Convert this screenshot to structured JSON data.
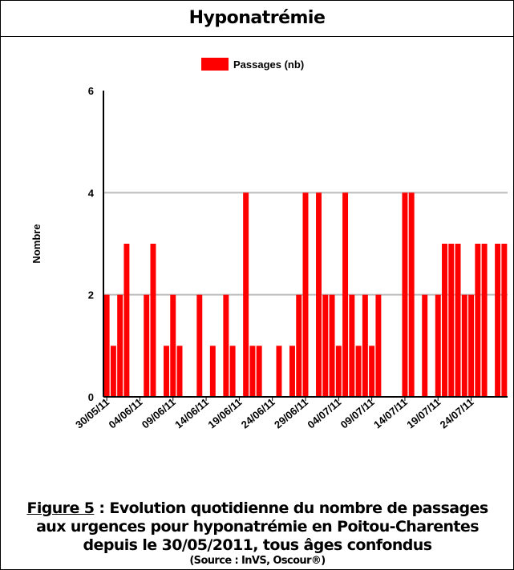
{
  "header": {
    "title": "Hyponatrémie"
  },
  "chart_data": {
    "type": "bar",
    "legend": "Passages (nb)",
    "color": "#ff0000",
    "y_label": "Nombre",
    "categories": [
      "30/05/11",
      null,
      null,
      null,
      null,
      "04/06/11",
      null,
      null,
      null,
      null,
      "09/06/11",
      null,
      null,
      null,
      null,
      "14/06/11",
      null,
      null,
      null,
      null,
      "19/06/11",
      null,
      null,
      null,
      null,
      "24/06/11",
      null,
      null,
      null,
      null,
      "29/06/11",
      null,
      null,
      null,
      null,
      "04/07/11",
      null,
      null,
      null,
      null,
      "09/07/11",
      null,
      null,
      null,
      null,
      "14/07/11",
      null,
      null,
      null,
      null,
      "19/07/11",
      null,
      null,
      null,
      null,
      "24/07/11",
      null,
      null,
      null,
      null,
      null
    ],
    "values": [
      2,
      1,
      2,
      3,
      0,
      0,
      2,
      3,
      0,
      1,
      2,
      1,
      0,
      0,
      2,
      0,
      1,
      0,
      2,
      1,
      0,
      4,
      1,
      1,
      0,
      0,
      1,
      0,
      1,
      2,
      4,
      0,
      4,
      2,
      2,
      1,
      4,
      2,
      1,
      2,
      1,
      2,
      0,
      0,
      0,
      4,
      4,
      0,
      2,
      0,
      2,
      3,
      3,
      3,
      2,
      2,
      3,
      3,
      0,
      3,
      3
    ],
    "ylim": [
      0,
      6
    ],
    "yticks": [
      0,
      2,
      4,
      6
    ],
    "grid": true
  },
  "caption": {
    "figure": "Figure 5",
    "text": " : Evolution quotidienne du nombre de passages aux urgences pour hyponatrémie en Poitou-Charentes depuis le 30/05/2011, tous âges confondus",
    "source": "(Source : InVS, Oscour®)"
  }
}
